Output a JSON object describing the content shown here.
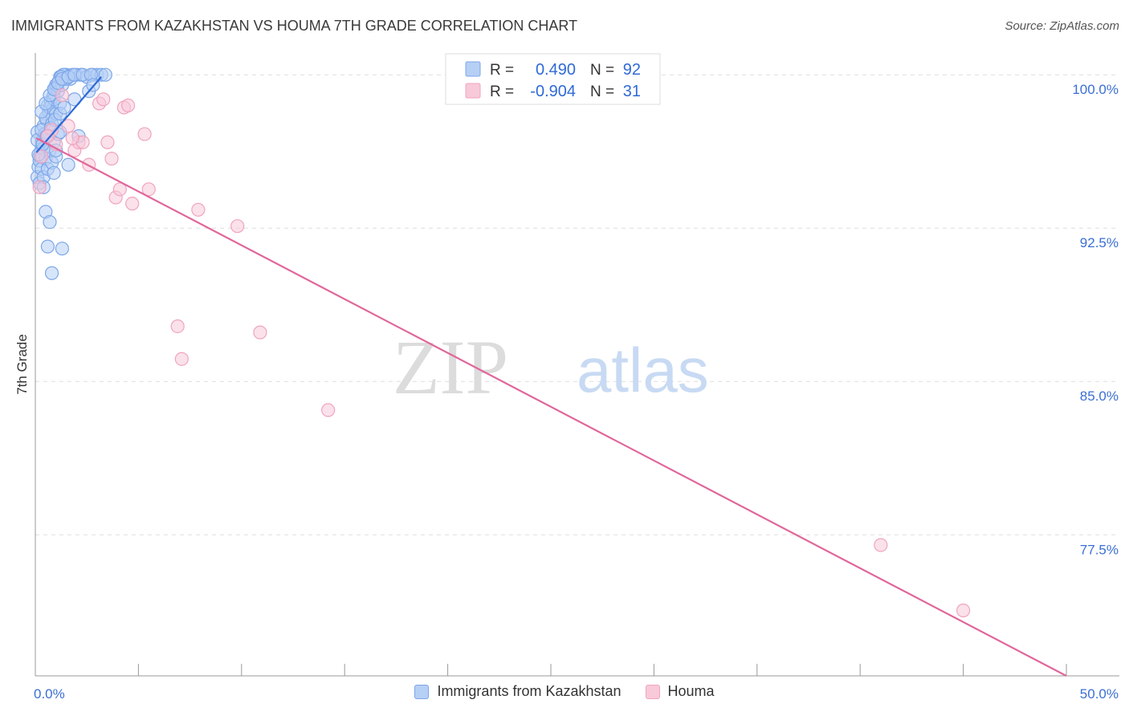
{
  "header": {
    "title": "IMMIGRANTS FROM KAZAKHSTAN VS HOUMA 7TH GRADE CORRELATION CHART",
    "source": "Source: ZipAtlas.com"
  },
  "watermark": {
    "zip": "ZIP",
    "atlas": "atlas"
  },
  "colors": {
    "blue": "#7da7e8",
    "blue_fill": "#b6cff5",
    "blue_line": "#2f6ad6",
    "pink": "#f0a4c0",
    "pink_fill": "#f8c9d9",
    "pink_line": "#e0679a",
    "tick": "#3b6fd4",
    "grid": "#dddddd"
  },
  "legend_top": {
    "rows": [
      {
        "r_label": "R =",
        "r_value": "0.490",
        "n_label": "N =",
        "n_value": "92"
      },
      {
        "r_label": "R =",
        "r_value": "-0.904",
        "n_label": "N =",
        "n_value": "31"
      }
    ]
  },
  "legend_bottom": [
    {
      "label": "Immigrants from Kazakhstan"
    },
    {
      "label": "Houma"
    }
  ],
  "chart_data": {
    "type": "scatter",
    "title": "IMMIGRANTS FROM KAZAKHSTAN VS HOUMA 7TH GRADE CORRELATION CHART",
    "xlabel": "",
    "ylabel": "7th Grade",
    "xlim": [
      0,
      50
    ],
    "ylim": [
      70.6,
      101.5
    ],
    "x_tick_labels": [
      "0.0%",
      "50.0%"
    ],
    "y_ticks": [
      100.0,
      92.5,
      85.0,
      77.5
    ],
    "y_tick_labels": [
      "100.0%",
      "92.5%",
      "85.0%",
      "77.5%"
    ],
    "grid": true,
    "series": [
      {
        "name": "Immigrants from Kazakhstan",
        "r": 0.49,
        "n": 92,
        "trend": {
          "x": [
            0.05,
            3.2
          ],
          "y": [
            96.2,
            99.9
          ]
        },
        "x": [
          0.1,
          0.3,
          0.5,
          0.8,
          1.0,
          1.2,
          1.5,
          0.2,
          0.4,
          0.6,
          0.9,
          1.1,
          1.4,
          1.7,
          2.0,
          0.15,
          0.35,
          0.55,
          0.75,
          0.95,
          1.15,
          1.35,
          1.6,
          0.25,
          0.45,
          0.65,
          0.85,
          1.05,
          1.25,
          0.1,
          0.3,
          0.5,
          0.7,
          0.9,
          1.1,
          1.3,
          1.5,
          1.8,
          2.2,
          2.5,
          2.8,
          3.0,
          3.2,
          3.4,
          0.2,
          0.4,
          0.6,
          0.8,
          1.0,
          1.2,
          0.1,
          0.3,
          0.5,
          0.7,
          0.9,
          1.1,
          0.2,
          0.4,
          0.6,
          0.8,
          1.0,
          0.3,
          0.5,
          0.7,
          0.9,
          1.1,
          1.3,
          1.6,
          1.9,
          2.3,
          2.7,
          0.15,
          0.35,
          0.55,
          0.75,
          0.95,
          1.2,
          1.4,
          0.5,
          0.6,
          0.8,
          0.7,
          1.3,
          0.9,
          1.2,
          2.6,
          2.8,
          0.4,
          1.0,
          1.6,
          1.9,
          2.1
        ],
        "y": [
          97.2,
          96.5,
          97.0,
          98.0,
          99.5,
          99.9,
          100.0,
          96.0,
          97.5,
          98.5,
          99.0,
          99.6,
          100.0,
          99.8,
          100.0,
          95.5,
          96.8,
          97.8,
          98.7,
          99.3,
          99.7,
          100.0,
          99.9,
          96.2,
          97.1,
          98.2,
          98.9,
          99.4,
          99.9,
          96.8,
          97.3,
          97.9,
          98.4,
          98.8,
          99.2,
          99.5,
          99.8,
          100.0,
          100.0,
          99.9,
          100.0,
          100.0,
          100.0,
          100.0,
          95.8,
          96.4,
          97.0,
          97.6,
          98.1,
          98.6,
          95.0,
          95.4,
          95.9,
          96.3,
          96.7,
          97.1,
          94.7,
          95.0,
          95.4,
          95.7,
          96.0,
          98.2,
          98.6,
          99.0,
          99.3,
          99.6,
          99.8,
          99.9,
          100.0,
          100.0,
          100.0,
          96.1,
          96.6,
          97.0,
          97.4,
          97.8,
          98.1,
          98.4,
          93.3,
          91.6,
          90.3,
          92.8,
          91.5,
          95.2,
          97.2,
          99.2,
          99.5,
          94.5,
          96.3,
          95.6,
          98.8,
          97.0
        ]
      },
      {
        "name": "Houma",
        "r": -0.904,
        "n": 31,
        "trend": {
          "x": [
            0.05,
            50.0
          ],
          "y": [
            96.9,
            70.6
          ]
        },
        "x": [
          0.2,
          0.3,
          0.8,
          1.0,
          1.3,
          1.6,
          1.9,
          2.1,
          2.3,
          2.6,
          3.1,
          3.3,
          3.5,
          3.7,
          3.9,
          4.1,
          4.3,
          4.5,
          4.7,
          5.3,
          5.5,
          6.9,
          7.1,
          7.9,
          9.8,
          10.9,
          14.2,
          41.0,
          45.0,
          0.6,
          1.8
        ],
        "y": [
          94.5,
          96.0,
          97.3,
          96.6,
          99.0,
          97.5,
          96.3,
          96.7,
          96.7,
          95.6,
          98.6,
          98.8,
          96.7,
          95.9,
          94.0,
          94.4,
          98.4,
          98.5,
          93.7,
          97.1,
          94.4,
          87.7,
          86.1,
          93.4,
          92.6,
          87.4,
          83.6,
          77.0,
          73.8,
          97.0,
          96.9
        ]
      }
    ]
  }
}
